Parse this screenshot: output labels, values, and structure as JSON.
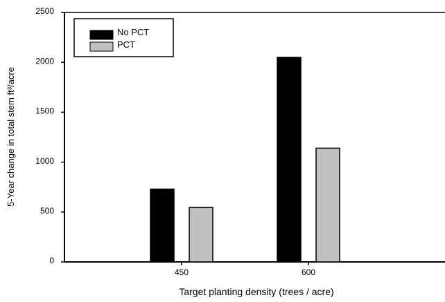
{
  "chart_data": {
    "type": "bar",
    "title": "",
    "xlabel": "Target planting density (trees / acre)",
    "ylabel": "5-Year change in total stem ft³/acre",
    "categories": [
      "450",
      "600"
    ],
    "series": [
      {
        "name": "No PCT",
        "values": [
          730,
          2050
        ],
        "color": "#000000"
      },
      {
        "name": "PCT",
        "values": [
          545,
          1140
        ],
        "color": "#c0c0c0"
      }
    ],
    "ylim": [
      0,
      2500
    ],
    "yticks": [
      "0",
      "500",
      "1000",
      "1500",
      "2000",
      "2500"
    ],
    "grid": false,
    "legend_position": "top-left"
  }
}
